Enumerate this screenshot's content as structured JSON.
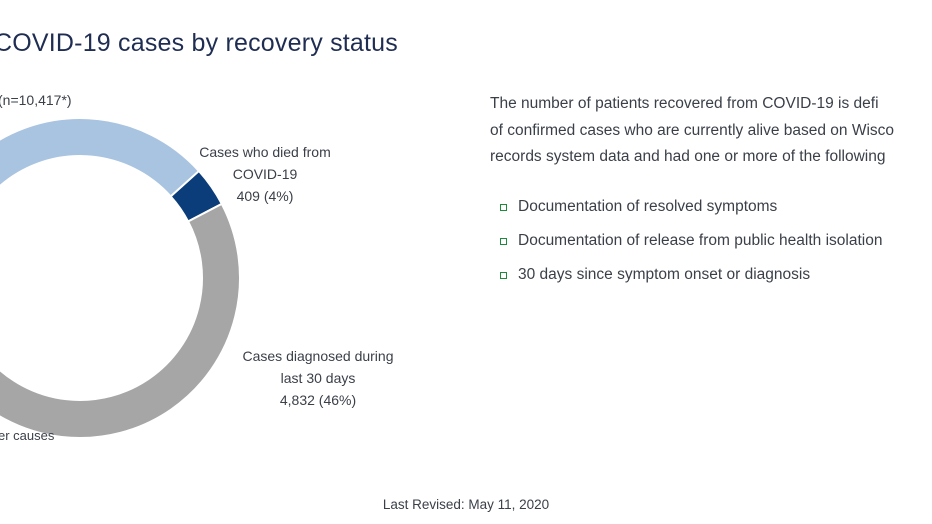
{
  "page": {
    "title": "COVID-19 cases by recovery status",
    "total_label": "(n=10,417*)"
  },
  "chart_data": {
    "type": "pie",
    "title": "",
    "segments": [
      {
        "label_lines": [
          "Cases who died from",
          "COVID-19",
          "409 (4%)"
        ],
        "value": 409,
        "percent": 4,
        "color": "#0b3d7a"
      },
      {
        "label_lines": [
          "Cases diagnosed during",
          "last 30 days",
          "4,832 (46%)"
        ],
        "value": 4832,
        "percent": 46,
        "color": "#a6a6a6"
      },
      {
        "label_lines": [
          "er causes"
        ],
        "color": "#a9c4e0"
      }
    ]
  },
  "description": {
    "lines": [
      "The number of patients recovered from COVID-19 is defi",
      "of confirmed cases who are currently alive based on Wisco",
      "records system data and had one or more of the following"
    ],
    "bullets": [
      "Documentation of resolved symptoms",
      "Documentation of release from public health isolation",
      "30 days since symptom onset or diagnosis"
    ],
    "bullet_color": "#1e8a3c"
  },
  "footer": {
    "last_revised": "Last Revised: May 11, 2020"
  }
}
